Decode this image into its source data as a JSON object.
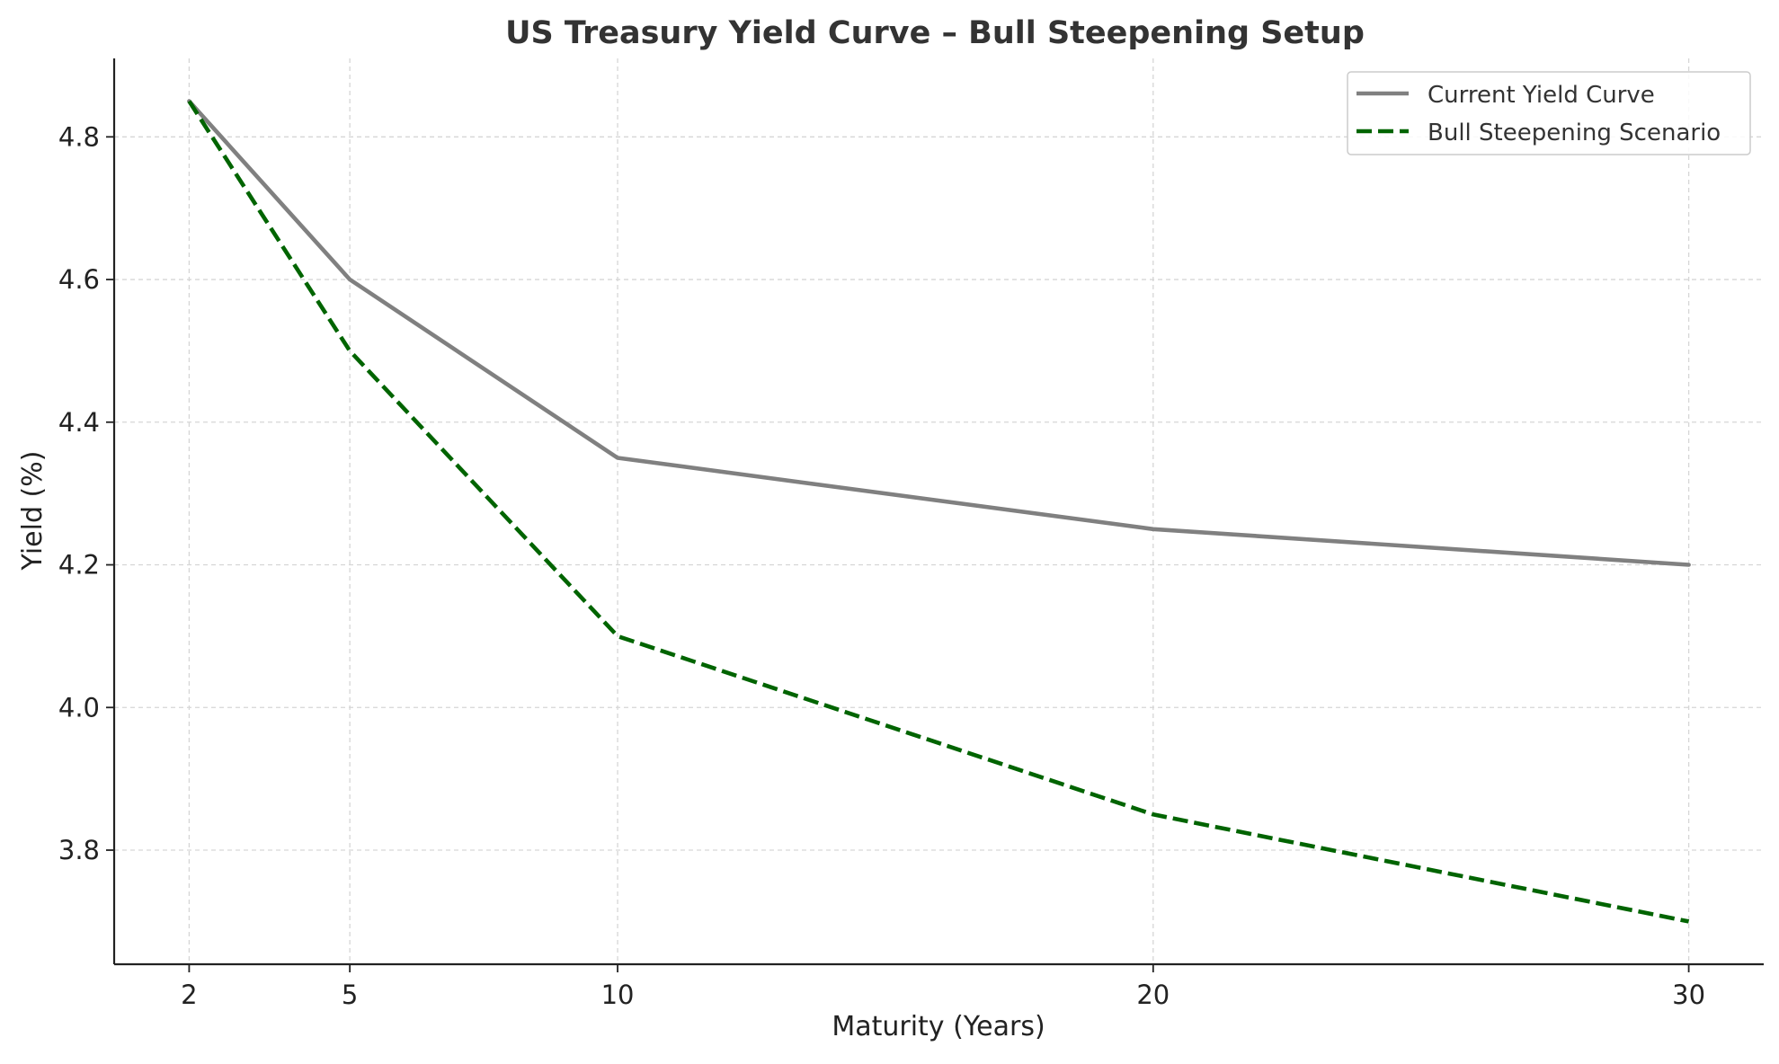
{
  "chart_data": {
    "type": "line",
    "title": "US Treasury Yield Curve – Bull Steepening Setup",
    "xlabel": "Maturity (Years)",
    "ylabel": "Yield (%)",
    "x": [
      2,
      5,
      10,
      20,
      30
    ],
    "x_ticks": [
      2,
      5,
      10,
      20,
      30
    ],
    "y_ticks": [
      3.8,
      4.0,
      4.2,
      4.4,
      4.6,
      4.8
    ],
    "xlim": [
      0.6,
      31.4
    ],
    "ylim": [
      3.64,
      4.91
    ],
    "grid": true,
    "legend_position": "top-right",
    "series": [
      {
        "name": "Current Yield Curve",
        "values": [
          4.85,
          4.6,
          4.35,
          4.25,
          4.2
        ],
        "color": "#808080",
        "style": "solid"
      },
      {
        "name": "Bull Steepening Scenario",
        "values": [
          4.85,
          4.5,
          4.1,
          3.85,
          3.7
        ],
        "color": "#006400",
        "style": "dashed"
      }
    ]
  }
}
